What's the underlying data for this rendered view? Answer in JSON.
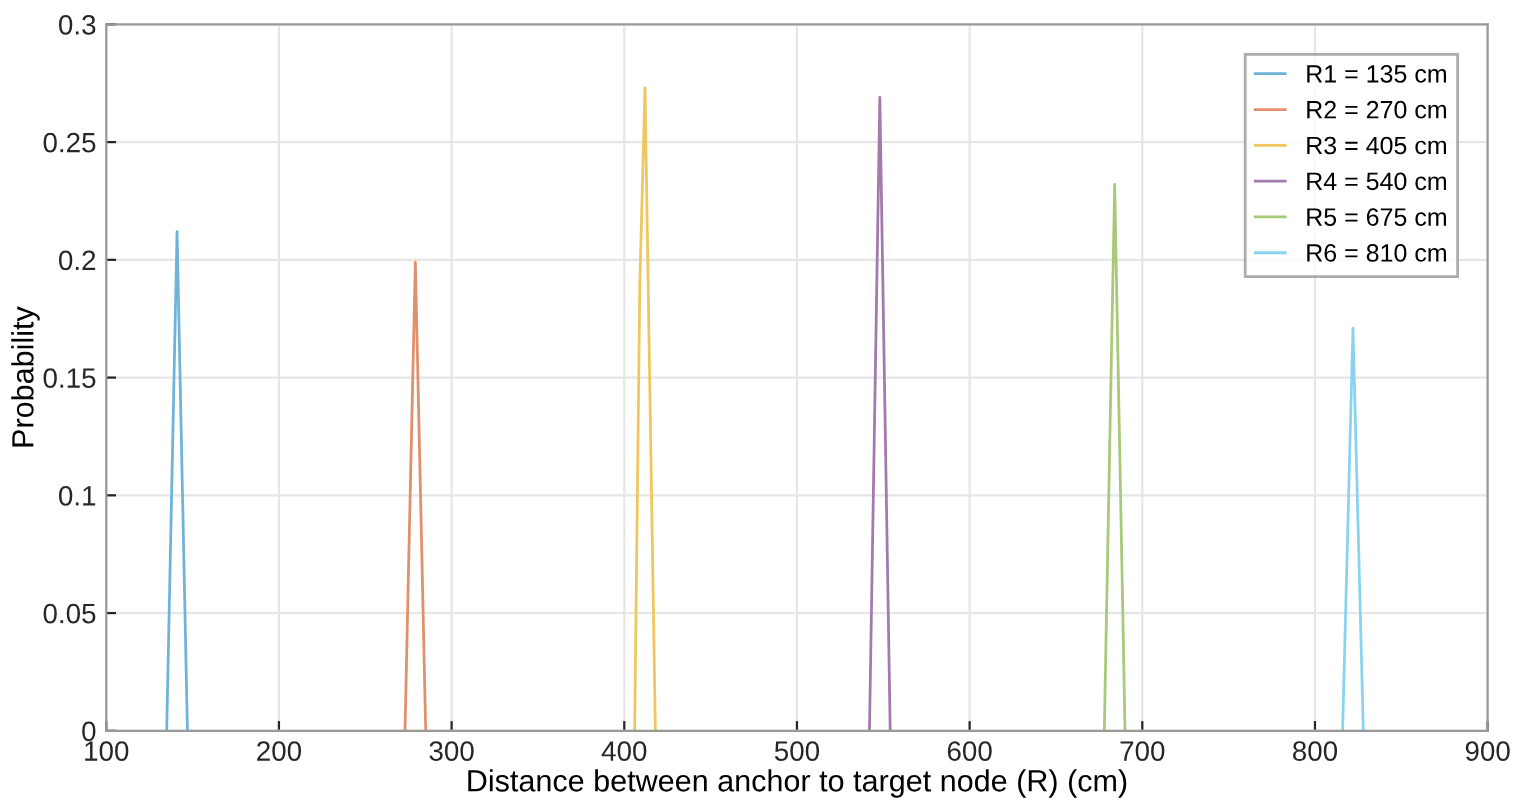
{
  "chart_data": {
    "type": "line",
    "xlabel": "Distance between anchor to target node (R) (cm)",
    "ylabel": "Probability",
    "series": [
      {
        "name": "R1 = 135 cm",
        "color": "#6fb3d9",
        "x": [
          135,
          138,
          141,
          144,
          147
        ],
        "values": [
          0,
          0.106,
          0.212,
          0.106,
          0
        ]
      },
      {
        "name": "R2 = 270 cm",
        "color": "#e0906c",
        "x": [
          273,
          276,
          279,
          282,
          285
        ],
        "values": [
          0,
          0.1,
          0.199,
          0.1,
          0
        ]
      },
      {
        "name": "R3 = 405 cm",
        "color": "#efc75e",
        "x": [
          406,
          409,
          412,
          415,
          418
        ],
        "values": [
          0,
          0.19,
          0.273,
          0.136,
          0
        ]
      },
      {
        "name": "R4 = 540 cm",
        "color": "#a27aab",
        "x": [
          542,
          545,
          548,
          551,
          554
        ],
        "values": [
          0,
          0.134,
          0.269,
          0.134,
          0
        ]
      },
      {
        "name": "R5 = 675 cm",
        "color": "#a8c978",
        "x": [
          678,
          681,
          684,
          687,
          690
        ],
        "values": [
          0,
          0.116,
          0.232,
          0.116,
          0
        ]
      },
      {
        "name": "R6 = 810 cm",
        "color": "#8ad3f0",
        "x": [
          816,
          819,
          822,
          825,
          828
        ],
        "values": [
          0,
          0.086,
          0.171,
          0.086,
          0
        ]
      }
    ],
    "xlim": [
      100,
      900
    ],
    "xticks": [
      100,
      200,
      300,
      400,
      500,
      600,
      700,
      800,
      900
    ],
    "ylim": [
      0,
      0.3
    ],
    "yticks": [
      0,
      0.05,
      0.1,
      0.15,
      0.2,
      0.25,
      0.3
    ],
    "grid": true,
    "legend": "top right",
    "marker": "none",
    "line_style": "solid"
  }
}
